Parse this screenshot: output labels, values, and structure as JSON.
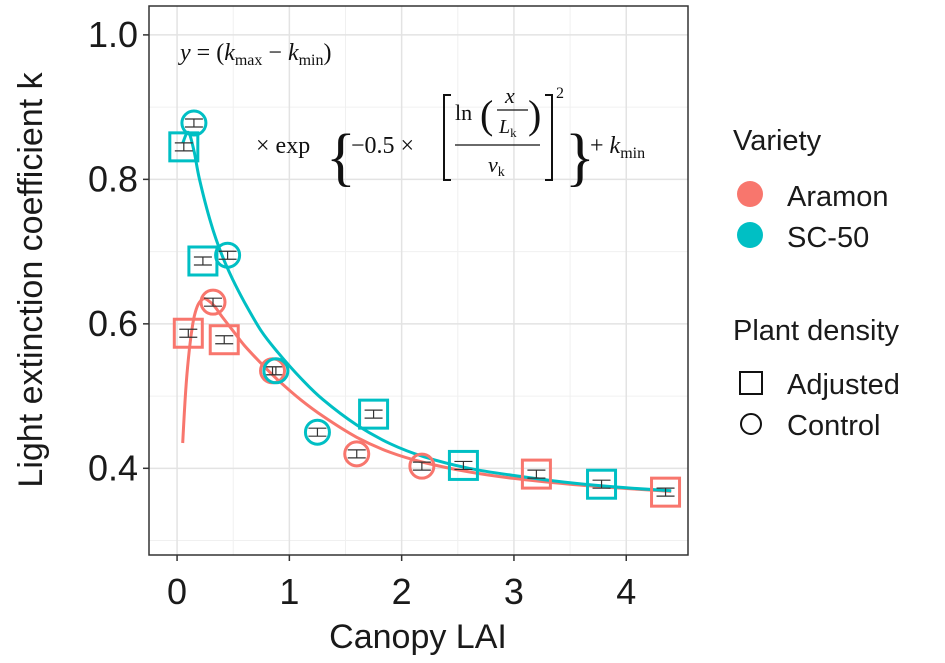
{
  "chart_data": {
    "type": "scatter",
    "title": "",
    "xlabel": "Canopy LAI",
    "ylabel": "Light extinction coefficient k",
    "xlim": [
      -0.25,
      4.55
    ],
    "ylim": [
      0.28,
      1.04
    ],
    "xticks": [
      "0",
      "1",
      "2",
      "3",
      "4"
    ],
    "yticks": [
      "0.4",
      "0.6",
      "0.8",
      "1.0"
    ],
    "grid": true,
    "legend_position": "right",
    "legend": {
      "variety_title": "Variety",
      "varieties": [
        {
          "name": "Aramon",
          "color": "#F8766D"
        },
        {
          "name": "SC-50",
          "color": "#00BFC4"
        }
      ],
      "density_title": "Plant density",
      "densities": [
        {
          "name": "Adjusted",
          "shape": "square"
        },
        {
          "name": "Control",
          "shape": "circle"
        }
      ]
    },
    "equation": {
      "line1": "y = (k_max − k_min)",
      "line2": "× exp{ −0.5 × [ ln( x / L_k ) / v_k ]² } + k_min"
    },
    "series": [
      {
        "variety": "Aramon",
        "density": "Adjusted",
        "x": [
          0.1,
          0.42,
          3.2,
          4.35
        ],
        "y": [
          0.587,
          0.578,
          0.392,
          0.367
        ]
      },
      {
        "variety": "Aramon",
        "density": "Control",
        "x": [
          0.32,
          0.85,
          1.6,
          2.18
        ],
        "y": [
          0.63,
          0.535,
          0.42,
          0.403
        ]
      },
      {
        "variety": "SC-50",
        "density": "Adjusted",
        "x": [
          0.06,
          0.23,
          1.75,
          2.55,
          3.78
        ],
        "y": [
          0.845,
          0.687,
          0.475,
          0.404,
          0.378
        ]
      },
      {
        "variety": "SC-50",
        "density": "Control",
        "x": [
          0.15,
          0.45,
          0.88,
          1.25
        ],
        "y": [
          0.878,
          0.695,
          0.535,
          0.45
        ]
      }
    ],
    "fitted_curves": [
      {
        "variety": "Aramon",
        "x": [
          0.05,
          0.08,
          0.11,
          0.14,
          0.17,
          0.2,
          0.24,
          0.28,
          0.33,
          0.4,
          0.5,
          0.6,
          0.75,
          0.9,
          1.1,
          1.3,
          1.6,
          1.9,
          2.2,
          2.6,
          3.0,
          3.5,
          4.0,
          4.4
        ],
        "y": [
          0.435,
          0.515,
          0.565,
          0.6,
          0.62,
          0.63,
          0.635,
          0.632,
          0.625,
          0.61,
          0.59,
          0.57,
          0.545,
          0.522,
          0.495,
          0.472,
          0.443,
          0.422,
          0.408,
          0.395,
          0.386,
          0.378,
          0.372,
          0.368
        ]
      },
      {
        "variety": "SC-50",
        "x": [
          0.05,
          0.1,
          0.15,
          0.2,
          0.3,
          0.4,
          0.5,
          0.6,
          0.75,
          0.9,
          1.1,
          1.3,
          1.6,
          1.9,
          2.2,
          2.6,
          3.0,
          3.5,
          4.0,
          4.4
        ],
        "y": [
          0.85,
          0.865,
          0.84,
          0.8,
          0.74,
          0.695,
          0.66,
          0.63,
          0.59,
          0.56,
          0.525,
          0.495,
          0.46,
          0.434,
          0.416,
          0.4,
          0.39,
          0.38,
          0.373,
          0.369
        ]
      }
    ]
  }
}
